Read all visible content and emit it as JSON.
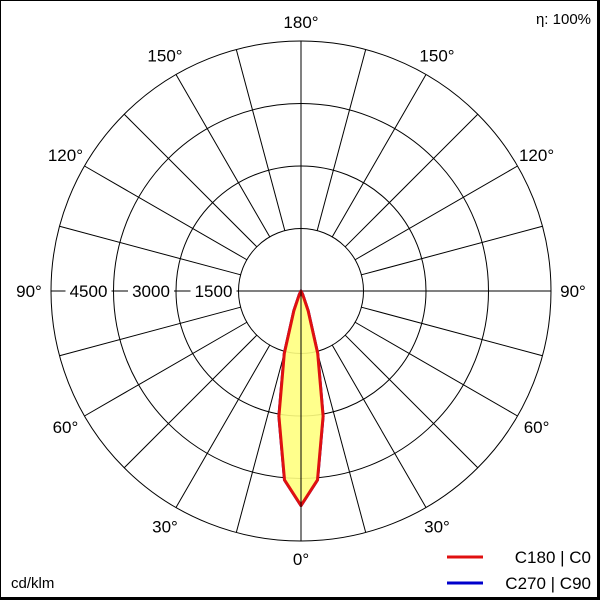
{
  "chart_data": {
    "type": "polar",
    "efficiency_label": "η: 100%",
    "unit_label": "cd/klm",
    "radial_ticks": [
      1500,
      3000,
      4500
    ],
    "radial_max": 6000,
    "angle_labels": [
      "0°",
      "30°",
      "60°",
      "90°",
      "120°",
      "150°",
      "180°"
    ],
    "spoke_step_deg": 15,
    "grid": true,
    "legend_placement": "bottom-right",
    "series": [
      {
        "name": "C270 | C90",
        "color": "#0000cc",
        "angles": [
          0,
          5,
          10,
          15,
          20,
          25,
          30
        ],
        "values": [
          5150,
          4550,
          3050,
          1550,
          500,
          100,
          0
        ]
      },
      {
        "name": "C180 | C0",
        "color": "#e01010",
        "fill": "#ffff80",
        "angles": [
          0,
          5,
          10,
          15,
          20,
          25,
          30
        ],
        "values": [
          5150,
          4550,
          3050,
          1550,
          500,
          100,
          0
        ]
      }
    ]
  }
}
